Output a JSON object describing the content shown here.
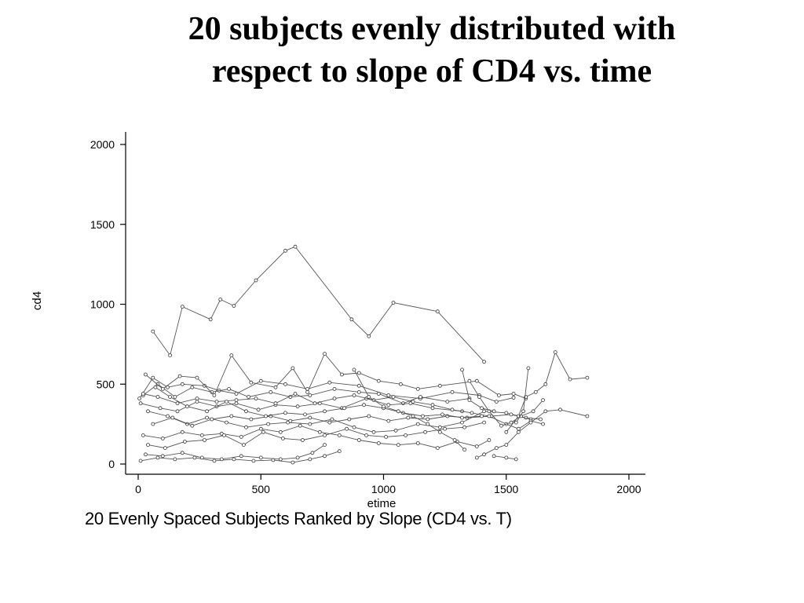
{
  "slide": {
    "title_line1": "20 subjects evenly distributed with",
    "title_line2": "respect to slope of CD4 vs. time",
    "caption": "20 Evenly Spaced Subjects Ranked by Slope (CD4 vs. T)"
  },
  "chart_data": {
    "type": "line",
    "xlabel": "etime",
    "ylabel": "cd4",
    "xlim": [
      -50,
      2070
    ],
    "ylim": [
      -70,
      2070
    ],
    "xticks": [
      0,
      500,
      1000,
      1500,
      2000
    ],
    "yticks": [
      0,
      500,
      1000,
      1500,
      2000
    ],
    "grid": false,
    "line_color": "#555555",
    "series": [
      {
        "points": [
          [
            60,
            830
          ],
          [
            130,
            680
          ],
          [
            180,
            985
          ],
          [
            295,
            905
          ],
          [
            335,
            1030
          ],
          [
            390,
            990
          ],
          [
            480,
            1150
          ],
          [
            600,
            1335
          ],
          [
            640,
            1360
          ],
          [
            870,
            905
          ],
          [
            940,
            800
          ],
          [
            1040,
            1010
          ],
          [
            1220,
            955
          ],
          [
            1410,
            640
          ]
        ]
      },
      {
        "points": [
          [
            5,
            410
          ],
          [
            60,
            540
          ],
          [
            120,
            480
          ],
          [
            180,
            500
          ],
          [
            270,
            490
          ],
          [
            330,
            460
          ],
          [
            400,
            440
          ],
          [
            500,
            520
          ],
          [
            600,
            500
          ],
          [
            690,
            470
          ],
          [
            780,
            510
          ],
          [
            900,
            490
          ],
          [
            1020,
            430
          ],
          [
            1150,
            410
          ],
          [
            1280,
            450
          ],
          [
            1390,
            430
          ],
          [
            1460,
            390
          ],
          [
            1530,
            415
          ]
        ]
      },
      {
        "points": [
          [
            20,
            430
          ],
          [
            80,
            500
          ],
          [
            150,
            420
          ],
          [
            220,
            480
          ],
          [
            300,
            450
          ],
          [
            370,
            470
          ],
          [
            450,
            420
          ],
          [
            540,
            450
          ],
          [
            620,
            420
          ],
          [
            700,
            430
          ],
          [
            800,
            470
          ],
          [
            900,
            450
          ],
          [
            980,
            440
          ],
          [
            1080,
            380
          ],
          [
            1150,
            420
          ],
          [
            1260,
            390
          ],
          [
            1350,
            410
          ]
        ]
      },
      {
        "points": [
          [
            10,
            380
          ],
          [
            90,
            350
          ],
          [
            160,
            330
          ],
          [
            240,
            390
          ],
          [
            320,
            360
          ],
          [
            400,
            380
          ],
          [
            490,
            340
          ],
          [
            560,
            370
          ],
          [
            650,
            360
          ],
          [
            740,
            380
          ],
          [
            830,
            350
          ],
          [
            930,
            410
          ],
          [
            1020,
            370
          ],
          [
            1110,
            380
          ],
          [
            1200,
            350
          ],
          [
            1320,
            330
          ]
        ]
      },
      {
        "points": [
          [
            30,
            560
          ],
          [
            100,
            470
          ],
          [
            170,
            550
          ],
          [
            240,
            540
          ],
          [
            310,
            430
          ],
          [
            380,
            680
          ],
          [
            460,
            510
          ],
          [
            560,
            480
          ],
          [
            630,
            600
          ],
          [
            690,
            450
          ],
          [
            760,
            690
          ],
          [
            830,
            560
          ],
          [
            900,
            570
          ],
          [
            980,
            520
          ],
          [
            1070,
            500
          ],
          [
            1140,
            470
          ],
          [
            1230,
            490
          ],
          [
            1380,
            520
          ],
          [
            1470,
            430
          ],
          [
            1530,
            440
          ],
          [
            1580,
            410
          ]
        ]
      },
      {
        "points": [
          [
            40,
            330
          ],
          [
            120,
            300
          ],
          [
            200,
            250
          ],
          [
            280,
            290
          ],
          [
            360,
            260
          ],
          [
            440,
            230
          ],
          [
            530,
            250
          ],
          [
            610,
            260
          ],
          [
            700,
            250
          ],
          [
            790,
            280
          ],
          [
            880,
            230
          ],
          [
            960,
            200
          ],
          [
            1050,
            210
          ],
          [
            1140,
            250
          ],
          [
            1230,
            230
          ],
          [
            1320,
            260
          ],
          [
            1410,
            330
          ],
          [
            1500,
            320
          ],
          [
            1580,
            290
          ],
          [
            1640,
            280
          ]
        ]
      },
      {
        "points": [
          [
            60,
            250
          ],
          [
            140,
            290
          ],
          [
            220,
            240
          ],
          [
            300,
            280
          ],
          [
            380,
            300
          ],
          [
            460,
            280
          ],
          [
            540,
            300
          ],
          [
            620,
            270
          ],
          [
            700,
            290
          ],
          [
            780,
            260
          ],
          [
            860,
            280
          ],
          [
            940,
            300
          ],
          [
            1020,
            270
          ],
          [
            1100,
            290
          ],
          [
            1180,
            280
          ],
          [
            1260,
            300
          ],
          [
            1340,
            290
          ],
          [
            1440,
            300
          ],
          [
            1520,
            310
          ],
          [
            1600,
            280
          ]
        ]
      },
      {
        "points": [
          [
            20,
            180
          ],
          [
            100,
            160
          ],
          [
            180,
            200
          ],
          [
            260,
            180
          ],
          [
            340,
            190
          ],
          [
            420,
            170
          ],
          [
            500,
            220
          ],
          [
            580,
            200
          ],
          [
            660,
            240
          ],
          [
            740,
            200
          ],
          [
            820,
            180
          ],
          [
            900,
            150
          ],
          [
            980,
            130
          ],
          [
            1060,
            120
          ],
          [
            1140,
            130
          ],
          [
            1220,
            100
          ],
          [
            1300,
            140
          ],
          [
            1380,
            110
          ],
          [
            1430,
            150
          ]
        ]
      },
      {
        "points": [
          [
            40,
            120
          ],
          [
            110,
            100
          ],
          [
            190,
            140
          ],
          [
            270,
            150
          ],
          [
            350,
            180
          ],
          [
            430,
            120
          ],
          [
            510,
            200
          ],
          [
            590,
            160
          ],
          [
            670,
            150
          ],
          [
            760,
            180
          ],
          [
            850,
            220
          ],
          [
            930,
            180
          ],
          [
            1010,
            170
          ],
          [
            1090,
            180
          ],
          [
            1170,
            200
          ],
          [
            1250,
            220
          ],
          [
            1330,
            230
          ],
          [
            1410,
            260
          ]
        ]
      },
      {
        "points": [
          [
            10,
            20
          ],
          [
            80,
            40
          ],
          [
            150,
            30
          ],
          [
            230,
            40
          ],
          [
            310,
            20
          ],
          [
            390,
            30
          ],
          [
            470,
            20
          ],
          [
            550,
            25
          ],
          [
            630,
            10
          ],
          [
            700,
            30
          ],
          [
            760,
            50
          ],
          [
            820,
            80
          ]
        ]
      },
      {
        "points": [
          [
            30,
            60
          ],
          [
            100,
            50
          ],
          [
            180,
            70
          ],
          [
            260,
            40
          ],
          [
            340,
            30
          ],
          [
            420,
            50
          ],
          [
            500,
            40
          ],
          [
            580,
            30
          ],
          [
            650,
            40
          ],
          [
            710,
            70
          ],
          [
            760,
            120
          ]
        ]
      },
      {
        "points": [
          [
            20,
            440
          ],
          [
            80,
            420
          ],
          [
            160,
            380
          ],
          [
            240,
            410
          ],
          [
            320,
            390
          ],
          [
            400,
            400
          ],
          [
            480,
            410
          ],
          [
            560,
            380
          ],
          [
            640,
            440
          ],
          [
            720,
            380
          ],
          [
            800,
            410
          ],
          [
            880,
            430
          ],
          [
            960,
            400
          ],
          [
            1040,
            420
          ],
          [
            1120,
            390
          ],
          [
            1200,
            370
          ],
          [
            1280,
            340
          ],
          [
            1360,
            320
          ],
          [
            1430,
            300
          ],
          [
            1500,
            250
          ],
          [
            1550,
            220
          ],
          [
            1600,
            270
          ],
          [
            1650,
            250
          ]
        ]
      },
      {
        "points": [
          [
            1380,
            40
          ],
          [
            1410,
            60
          ],
          [
            1460,
            100
          ],
          [
            1500,
            120
          ],
          [
            1550,
            200
          ],
          [
            1600,
            260
          ],
          [
            1660,
            330
          ],
          [
            1720,
            340
          ],
          [
            1830,
            300
          ]
        ]
      },
      {
        "points": [
          [
            1500,
            200
          ],
          [
            1550,
            300
          ],
          [
            1580,
            420
          ],
          [
            1620,
            450
          ],
          [
            1660,
            500
          ],
          [
            1700,
            700
          ],
          [
            1760,
            530
          ],
          [
            1830,
            540
          ]
        ]
      },
      {
        "points": [
          [
            1350,
            520
          ],
          [
            1390,
            420
          ],
          [
            1430,
            330
          ],
          [
            1480,
            240
          ],
          [
            1520,
            260
          ],
          [
            1560,
            300
          ],
          [
            1610,
            330
          ],
          [
            1650,
            400
          ]
        ]
      },
      {
        "points": [
          [
            70,
            480
          ],
          [
            130,
            420
          ],
          [
            200,
            360
          ],
          [
            280,
            330
          ],
          [
            360,
            390
          ],
          [
            440,
            330
          ],
          [
            520,
            300
          ],
          [
            600,
            320
          ],
          [
            680,
            310
          ],
          [
            760,
            330
          ],
          [
            840,
            350
          ],
          [
            920,
            370
          ],
          [
            1000,
            350
          ],
          [
            1080,
            320
          ],
          [
            1160,
            300
          ],
          [
            1240,
            310
          ],
          [
            1320,
            290
          ],
          [
            1400,
            300
          ]
        ]
      },
      {
        "points": [
          [
            1450,
            50
          ],
          [
            1500,
            40
          ],
          [
            1540,
            30
          ]
        ]
      },
      {
        "points": [
          [
            1590,
            600
          ],
          [
            1570,
            330
          ],
          [
            1540,
            260
          ]
        ]
      },
      {
        "points": [
          [
            1320,
            590
          ],
          [
            1350,
            400
          ],
          [
            1400,
            350
          ],
          [
            1450,
            330
          ]
        ]
      },
      {
        "points": [
          [
            880,
            590
          ],
          [
            940,
            420
          ],
          [
            1000,
            360
          ],
          [
            1060,
            330
          ],
          [
            1120,
            300
          ],
          [
            1180,
            250
          ],
          [
            1230,
            200
          ],
          [
            1290,
            150
          ],
          [
            1330,
            90
          ]
        ]
      }
    ]
  }
}
